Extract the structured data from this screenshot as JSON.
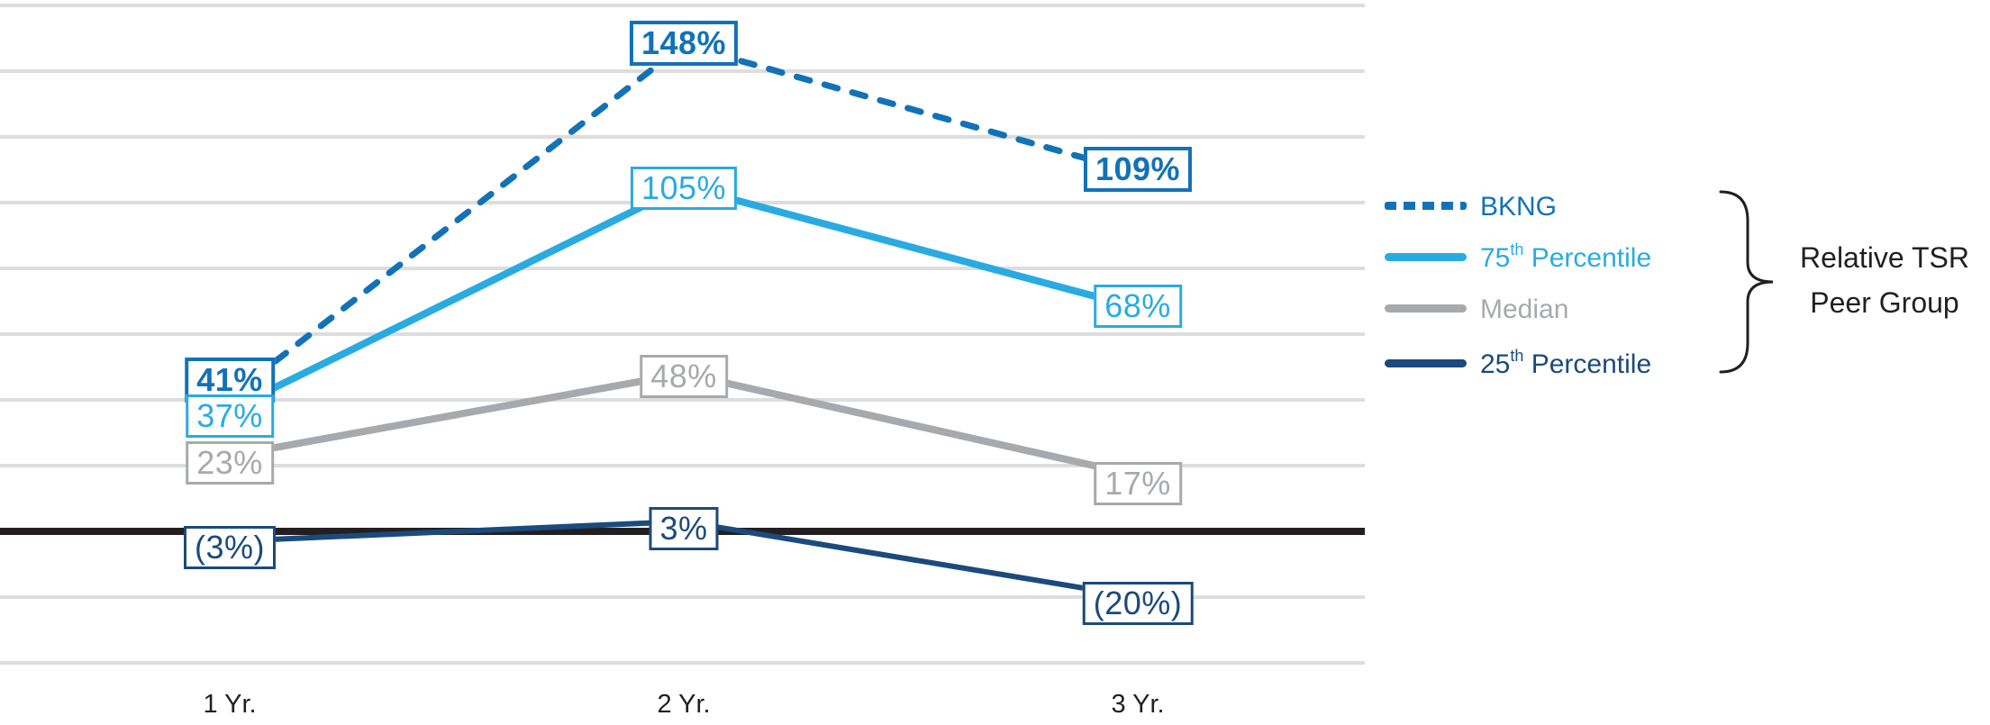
{
  "chart_data": {
    "type": "line",
    "title": "",
    "xlabel": "",
    "ylabel": "",
    "categories": [
      "1 Yr.",
      "2 Yr.",
      "3 Yr."
    ],
    "ylim": [
      -47,
      162
    ],
    "grid": {
      "min": -40,
      "max": 160,
      "step": 20,
      "zero_line": true,
      "grid_on": true
    },
    "legend_position": "right",
    "series": [
      {
        "name": "BKNG",
        "values": [
          41,
          148,
          109
        ],
        "labels": [
          "41%",
          "148%",
          "109%"
        ],
        "color": "#1272b8",
        "line_style": "dashed",
        "emphasis": true
      },
      {
        "name": "75th Percentile",
        "values": [
          37,
          105,
          68
        ],
        "labels": [
          "37%",
          "105%",
          "68%"
        ],
        "color": "#29abe2",
        "line_style": "solid",
        "emphasis": false
      },
      {
        "name": "Median",
        "values": [
          23,
          48,
          17
        ],
        "labels": [
          "23%",
          "48%",
          "17%"
        ],
        "color": "#a7a9ac",
        "line_style": "solid",
        "emphasis": false
      },
      {
        "name": "25th Percentile",
        "values": [
          -3,
          3,
          -20
        ],
        "labels": [
          "(3%)",
          "3%",
          "(20%)"
        ],
        "color": "#1b4a7c",
        "line_style": "solid",
        "emphasis": false
      }
    ]
  },
  "axis": {
    "x_labels": [
      "1 Yr.",
      "2 Yr.",
      "3 Yr."
    ]
  },
  "legend": {
    "items": [
      {
        "pre": "BKNG",
        "sup": "",
        "post": "",
        "color": "#1272b8",
        "swatch": "dashed"
      },
      {
        "pre": "75",
        "sup": "th",
        "post": " Percentile",
        "color": "#29abe2",
        "swatch": "solid"
      },
      {
        "pre": "Median",
        "sup": "",
        "post": "",
        "color": "#a7a9ac",
        "swatch": "solid"
      },
      {
        "pre": "25",
        "sup": "th",
        "post": " Percentile",
        "color": "#1b4a7c",
        "swatch": "solid"
      }
    ],
    "group_label_line1": "Relative TSR",
    "group_label_line2": "Peer Group"
  },
  "colors": {
    "gridline": "#dcdddd",
    "zero_line": "#231f20",
    "text": "#231f20",
    "background": "#ffffff"
  }
}
